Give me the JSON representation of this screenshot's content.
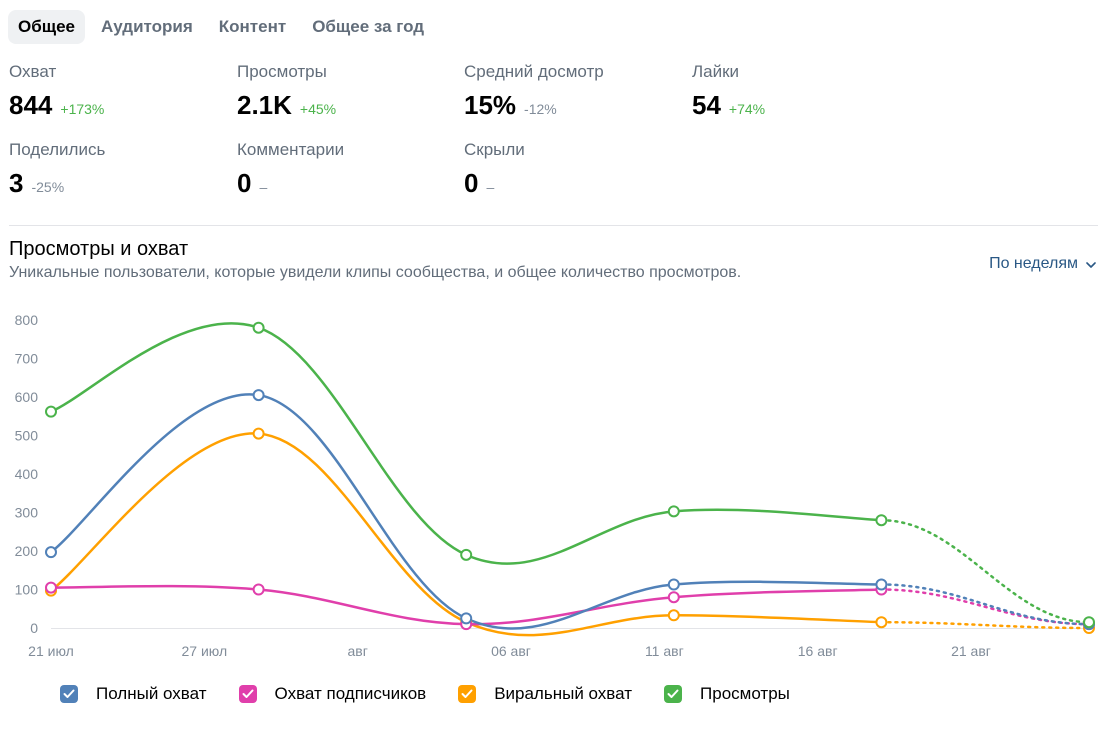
{
  "tabs": [
    {
      "label": "Общее",
      "active": true
    },
    {
      "label": "Аудитория",
      "active": false
    },
    {
      "label": "Контент",
      "active": false
    },
    {
      "label": "Общее за год",
      "active": false
    }
  ],
  "stats": [
    {
      "label": "Охват",
      "value": "844",
      "change": "+173%",
      "trend": "up"
    },
    {
      "label": "Просмотры",
      "value": "2.1K",
      "change": "+45%",
      "trend": "up"
    },
    {
      "label": "Средний досмотр",
      "value": "15%",
      "change": "-12%",
      "trend": "down"
    },
    {
      "label": "Лайки",
      "value": "54",
      "change": "+74%",
      "trend": "up"
    },
    {
      "label": "Поделились",
      "value": "3",
      "change": "-25%",
      "trend": "down"
    },
    {
      "label": "Комментарии",
      "value": "0",
      "change": "–",
      "trend": "none"
    },
    {
      "label": "Скрыли",
      "value": "0",
      "change": "–",
      "trend": "none"
    }
  ],
  "section": {
    "title": "Просмотры и охват",
    "subtitle": "Уникальные пользователи, которые увидели клипы сообщества, и общее количество просмотров.",
    "period_label": "По неделям",
    "period_icon": "chevron-down-icon"
  },
  "chart_data": {
    "type": "line",
    "x_tick_labels": [
      "21 июл",
      "27 июл",
      "авг",
      "06 авг",
      "11 авг",
      "16 авг",
      "21 авг"
    ],
    "y_ticks": [
      0,
      100,
      200,
      300,
      400,
      500,
      600,
      700,
      800
    ],
    "ylim": [
      0,
      800
    ],
    "x": [
      "21 июл",
      "28 июл",
      "04 авг",
      "11 авг",
      "18 авг",
      "25 авг"
    ],
    "projected_from_index": 4,
    "series": [
      {
        "name": "Полный охват",
        "color": "#5181b8",
        "values": [
          197,
          605,
          25,
          113,
          113,
          10
        ]
      },
      {
        "name": "Охват подписчиков",
        "color": "#e03fab",
        "values": [
          105,
          100,
          10,
          80,
          100,
          10
        ]
      },
      {
        "name": "Виральный охват",
        "color": "#ffa000",
        "values": [
          97,
          505,
          15,
          33,
          15,
          0
        ]
      },
      {
        "name": "Просмотры",
        "color": "#4bb34b",
        "values": [
          562,
          780,
          190,
          303,
          280,
          15
        ]
      }
    ],
    "grid": false,
    "legend_position": "bottom"
  },
  "colors": {
    "accent": "#2a5885",
    "up": "#4bb34b",
    "down": "#818c99"
  }
}
